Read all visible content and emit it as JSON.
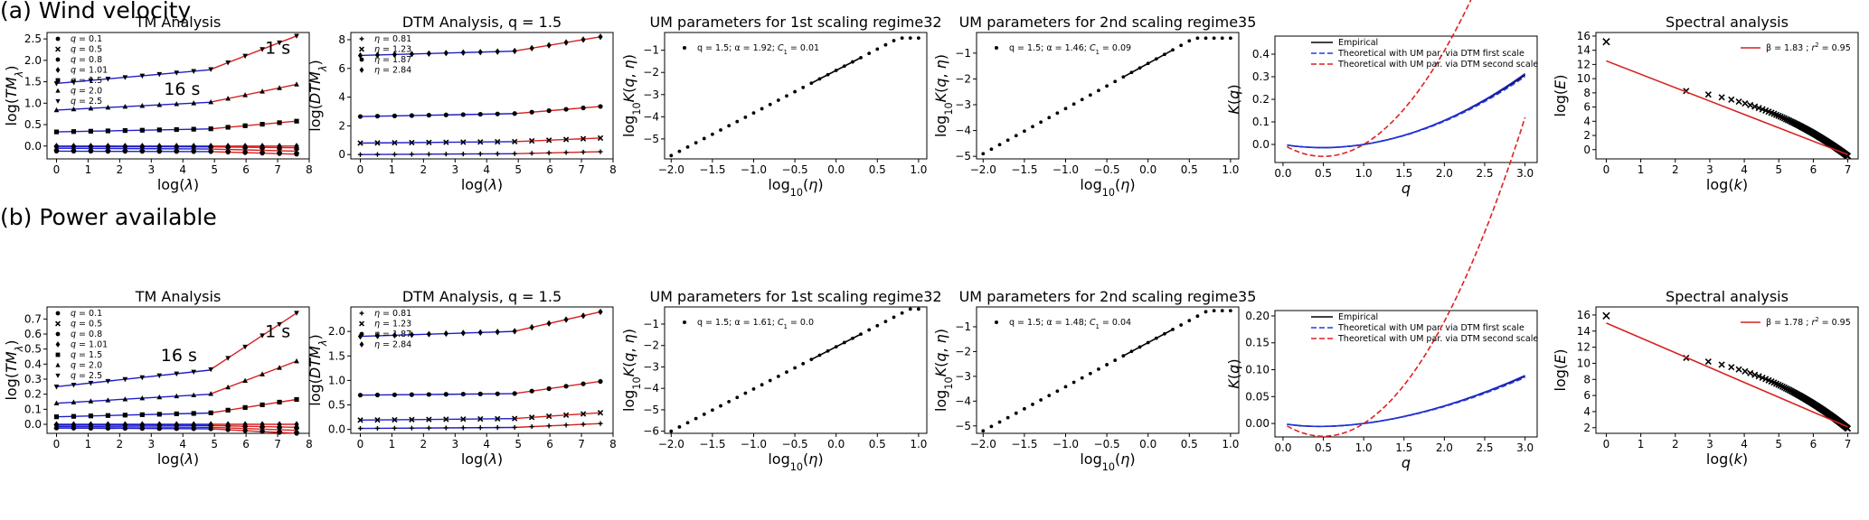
{
  "rows": [
    {
      "title": "(a) Wind velocity",
      "panels": {
        "tm": {
          "type": "line",
          "title": "TM Analysis",
          "xlabel": "log(λ)",
          "ylabel": "log(TMλ)",
          "xlim": [
            -0.3,
            8
          ],
          "ylim": [
            -0.3,
            2.65
          ],
          "xticks": [
            "0",
            "1",
            "2",
            "3",
            "4",
            "5",
            "6",
            "7",
            "8"
          ],
          "yticks": [
            "0.0",
            "0.5",
            "1.0",
            "1.5",
            "2.0",
            "2.5"
          ],
          "yticks_values": [
            0,
            0.5,
            1.0,
            1.5,
            2.0,
            2.5
          ],
          "legend": [
            "q = 0.1",
            "q = 0.5",
            "q = 0.8",
            "q = 1.01",
            "q = 1.5",
            "q = 2.0",
            "q = 2.5"
          ],
          "annotations": [
            {
              "text": "1 s",
              "x": 6.6,
              "y": 2.15
            },
            {
              "text": "16 s",
              "x": 3.4,
              "y": 1.2
            }
          ],
          "break_x": 4.85,
          "x_end": 7.6,
          "series": [
            {
              "name": "q = 0.1",
              "start": -0.01,
              "mid": -0.02,
              "end": -0.04
            },
            {
              "name": "q = 0.5",
              "start": -0.05,
              "mid": -0.07,
              "end": -0.12
            },
            {
              "name": "q = 0.8",
              "start": -0.12,
              "mid": -0.13,
              "end": -0.19
            },
            {
              "name": "q = 1.01",
              "start": 0.0,
              "mid": 0.0,
              "end": 0.0
            },
            {
              "name": "q = 1.5",
              "start": 0.33,
              "mid": 0.4,
              "end": 0.58
            },
            {
              "name": "q = 2.0",
              "start": 0.84,
              "mid": 1.02,
              "end": 1.44
            },
            {
              "name": "q = 2.5",
              "start": 1.46,
              "mid": 1.78,
              "end": 2.57
            }
          ]
        },
        "dtm": {
          "type": "line",
          "title": "DTM Analysis, q = 1.5",
          "xlabel": "log(λ)",
          "ylabel": "log(DTMλ)",
          "xlim": [
            -0.3,
            8
          ],
          "ylim": [
            -0.3,
            8.5
          ],
          "xticks": [
            "0",
            "1",
            "2",
            "3",
            "4",
            "5",
            "6",
            "7",
            "8"
          ],
          "yticks": [
            "0",
            "2",
            "4",
            "6",
            "8"
          ],
          "yticks_values": [
            0,
            2,
            4,
            6,
            8
          ],
          "legend": [
            "η = 0.81",
            "η = 1.23",
            "η = 1.87",
            "η = 2.84"
          ],
          "break_x": 4.85,
          "x_end": 7.6,
          "series": [
            {
              "name": "η = 0.81",
              "start": 0.0,
              "mid": 0.06,
              "end": 0.2
            },
            {
              "name": "η = 1.23",
              "start": 0.8,
              "mid": 0.9,
              "end": 1.15
            },
            {
              "name": "η = 1.87",
              "start": 2.65,
              "mid": 2.85,
              "end": 3.35
            },
            {
              "name": "η = 2.84",
              "start": 6.9,
              "mid": 7.2,
              "end": 8.2
            }
          ]
        },
        "um1": {
          "type": "scatter",
          "title": "UM parameters for 1st scaling regime32",
          "xlabel": "log10(η)",
          "ylabel": "log10K(q, η)",
          "xlim": [
            -2.08,
            1.1
          ],
          "ylim": [
            -5.9,
            -0.2
          ],
          "xticks": [
            "−2.0",
            "−1.5",
            "−1.0",
            "−0.5",
            "0.0",
            "0.5",
            "1.0"
          ],
          "xticks_values": [
            -2.0,
            -1.5,
            -1.0,
            -0.5,
            0.0,
            0.5,
            1.0
          ],
          "yticks": [
            "−5",
            "−4",
            "−3",
            "−2",
            "−1"
          ],
          "yticks_values": [
            -5,
            -4,
            -3,
            -2,
            -1
          ],
          "legend": [
            "q = 1.5; α = 1.92; C1 = 0.01"
          ],
          "x0": -2.0,
          "y0": -5.75,
          "slope": 1.92,
          "plateau": -0.45,
          "fit_range": [
            -0.3,
            0.3
          ]
        },
        "um2": {
          "type": "scatter",
          "title": "UM parameters for 2nd scaling regime35",
          "xlabel": "log10(η)",
          "ylabel": "log10K(q, η)",
          "xlim": [
            -2.08,
            1.1
          ],
          "ylim": [
            -5.1,
            -0.2
          ],
          "xticks": [
            "−2.0",
            "−1.5",
            "−1.0",
            "−0.5",
            "0.0",
            "0.5",
            "1.0"
          ],
          "xticks_values": [
            -2.0,
            -1.5,
            -1.0,
            -0.5,
            0.0,
            0.5,
            1.0
          ],
          "yticks": [
            "−5",
            "−4",
            "−3",
            "−2",
            "−1"
          ],
          "yticks_values": [
            -5,
            -4,
            -3,
            -2,
            -1
          ],
          "legend": [
            "q = 1.5; α = 1.46; C1 = 0.09"
          ],
          "x0": -2.0,
          "y0": -4.9,
          "slope": 1.75,
          "plateau": -0.42,
          "fit_range": [
            -0.3,
            0.3
          ]
        },
        "kq": {
          "type": "line",
          "xlabel": "q",
          "ylabel": "K(q)",
          "xlim": [
            -0.1,
            3.15
          ],
          "ylim": [
            -0.08,
            0.48
          ],
          "xticks": [
            "0.0",
            "0.5",
            "1.0",
            "1.5",
            "2.0",
            "2.5",
            "3.0"
          ],
          "xticks_values": [
            0,
            0.5,
            1.0,
            1.5,
            2.0,
            2.5,
            3.0
          ],
          "yticks": [
            "0.0",
            "0.1",
            "0.2",
            "0.3",
            "0.4"
          ],
          "yticks_values": [
            0,
            0.1,
            0.2,
            0.3,
            0.4
          ],
          "legend": [
            "Empirical",
            "Theoretical with UM par. via DTM first scale",
            "Theoretical with UM par. via DTM second scale"
          ],
          "c1_first": 0.055,
          "alpha_first": 1.92,
          "c1_second": 0.21,
          "alpha_second": 1.46,
          "c1_emp": 0.055
        },
        "spec": {
          "type": "scatter",
          "title": "Spectral analysis",
          "xlabel": "log(k)",
          "ylabel": "log(E)",
          "xlim": [
            -0.3,
            7.3
          ],
          "ylim": [
            -1.3,
            16.5
          ],
          "xticks": [
            "0",
            "1",
            "2",
            "3",
            "4",
            "5",
            "6",
            "7"
          ],
          "xticks_values": [
            0,
            1,
            2,
            3,
            4,
            5,
            6,
            7
          ],
          "yticks": [
            "0",
            "2",
            "4",
            "6",
            "8",
            "10",
            "12",
            "14",
            "16"
          ],
          "yticks_values": [
            0,
            2,
            4,
            6,
            8,
            10,
            12,
            14,
            16
          ],
          "legend": [
            "β = 1.83 ; r² = 0.95"
          ],
          "fit_start": 12.5,
          "fit_end": -0.7,
          "first_point": 15.2,
          "knee_y": 8.8
        }
      }
    },
    {
      "title": "(b) Power available",
      "panels": {
        "tm": {
          "type": "line",
          "title": "TM Analysis",
          "xlabel": "log(λ)",
          "ylabel": "log(TMλ)",
          "xlim": [
            -0.3,
            8
          ],
          "ylim": [
            -0.06,
            0.78
          ],
          "xticks": [
            "0",
            "1",
            "2",
            "3",
            "4",
            "5",
            "6",
            "7",
            "8"
          ],
          "yticks": [
            "0.0",
            "0.1",
            "0.2",
            "0.3",
            "0.4",
            "0.5",
            "0.6",
            "0.7"
          ],
          "yticks_values": [
            0,
            0.1,
            0.2,
            0.3,
            0.4,
            0.5,
            0.6,
            0.7
          ],
          "legend": [
            "q = 0.1",
            "q = 0.5",
            "q = 0.8",
            "q = 1.01",
            "q = 1.5",
            "q = 2.0",
            "q = 2.5"
          ],
          "annotations": [
            {
              "text": "1 s",
              "x": 6.6,
              "y": 0.58
            },
            {
              "text": "16 s",
              "x": 3.3,
              "y": 0.42
            }
          ],
          "break_x": 4.85,
          "x_end": 7.6,
          "series": [
            {
              "name": "q = 0.1",
              "start": -0.005,
              "mid": -0.008,
              "end": -0.02
            },
            {
              "name": "q = 0.5",
              "start": -0.015,
              "mid": -0.02,
              "end": -0.04
            },
            {
              "name": "q = 0.8",
              "start": -0.025,
              "mid": -0.03,
              "end": -0.06
            },
            {
              "name": "q = 1.01",
              "start": 0.0,
              "mid": 0.0,
              "end": 0.0
            },
            {
              "name": "q = 1.5",
              "start": 0.05,
              "mid": 0.075,
              "end": 0.165
            },
            {
              "name": "q = 2.0",
              "start": 0.14,
              "mid": 0.2,
              "end": 0.42
            },
            {
              "name": "q = 2.5",
              "start": 0.25,
              "mid": 0.36,
              "end": 0.74
            }
          ]
        },
        "dtm": {
          "type": "line",
          "title": "DTM Analysis, q = 1.5",
          "xlabel": "log(λ)",
          "ylabel": "log(DTMλ)",
          "xlim": [
            -0.3,
            8
          ],
          "ylim": [
            -0.08,
            2.5
          ],
          "xticks": [
            "0",
            "1",
            "2",
            "3",
            "4",
            "5",
            "6",
            "7",
            "8"
          ],
          "yticks": [
            "0.0",
            "0.5",
            "1.0",
            "1.5",
            "2.0"
          ],
          "yticks_values": [
            0,
            0.5,
            1.0,
            1.5,
            2.0
          ],
          "legend": [
            "η = 0.81",
            "η = 1.23",
            "η = 1.87",
            "η = 2.84"
          ],
          "break_x": 4.85,
          "x_end": 7.6,
          "series": [
            {
              "name": "η = 0.81",
              "start": 0.02,
              "mid": 0.04,
              "end": 0.12
            },
            {
              "name": "η = 1.23",
              "start": 0.19,
              "mid": 0.22,
              "end": 0.34
            },
            {
              "name": "η = 1.87",
              "start": 0.7,
              "mid": 0.73,
              "end": 0.98
            },
            {
              "name": "η = 2.84",
              "start": 1.9,
              "mid": 2.0,
              "end": 2.4
            }
          ]
        },
        "um1": {
          "type": "scatter",
          "title": "UM parameters for 1st scaling regime32",
          "xlabel": "log10(η)",
          "ylabel": "log10K(q, η)",
          "xlim": [
            -2.08,
            1.1
          ],
          "ylim": [
            -6.1,
            -0.2
          ],
          "xticks": [
            "−2.0",
            "−1.5",
            "−1.0",
            "−0.5",
            "0.0",
            "0.5",
            "1.0"
          ],
          "xticks_values": [
            -2.0,
            -1.5,
            -1.0,
            -0.5,
            0.0,
            0.5,
            1.0
          ],
          "yticks": [
            "−6",
            "−5",
            "−4",
            "−3",
            "−2",
            "−1"
          ],
          "yticks_values": [
            -6,
            -5,
            -4,
            -3,
            -2,
            -1
          ],
          "legend": [
            "q = 1.5; α = 1.61; C1 = 0.0"
          ],
          "x0": -2.0,
          "y0": -6.0,
          "slope": 1.97,
          "plateau": -0.3,
          "fit_range": [
            -0.3,
            0.3
          ]
        },
        "um2": {
          "type": "scatter",
          "title": "UM parameters for 2nd scaling regime35",
          "xlabel": "log10(η)",
          "ylabel": "log10K(q, η)",
          "xlim": [
            -2.08,
            1.1
          ],
          "ylim": [
            -5.3,
            -0.2
          ],
          "xticks": [
            "−2.0",
            "−1.5",
            "−1.0",
            "−0.5",
            "0.0",
            "0.5",
            "1.0"
          ],
          "xticks_values": [
            -2.0,
            -1.5,
            -1.0,
            -0.5,
            0.0,
            0.5,
            1.0
          ],
          "yticks": [
            "−5",
            "−4",
            "−3",
            "−2",
            "−1"
          ],
          "yticks_values": [
            -5,
            -4,
            -3,
            -2,
            -1
          ],
          "legend": [
            "q = 1.5; α = 1.48; C1 = 0.04"
          ],
          "x0": -2.0,
          "y0": -5.2,
          "slope": 1.78,
          "plateau": -0.35,
          "fit_range": [
            -0.3,
            0.3
          ]
        },
        "kq": {
          "type": "line",
          "xlabel": "q",
          "ylabel": "K(q)",
          "xlim": [
            -0.1,
            3.15
          ],
          "ylim": [
            -0.025,
            0.21
          ],
          "xticks": [
            "0.0",
            "0.5",
            "1.0",
            "1.5",
            "2.0",
            "2.5",
            "3.0"
          ],
          "xticks_values": [
            0,
            0.5,
            1.0,
            1.5,
            2.0,
            2.5,
            3.0
          ],
          "yticks": [
            "0.00",
            "0.05",
            "0.10",
            "0.15",
            "0.20"
          ],
          "yticks_values": [
            0,
            0.05,
            0.1,
            0.15,
            0.2
          ],
          "legend": [
            "Empirical",
            "Theoretical with UM par. via DTM first scale",
            "Theoretical with UM par. via DTM second scale"
          ],
          "c1_first": 0.019,
          "alpha_first": 1.61,
          "c1_second": 0.095,
          "alpha_second": 1.48,
          "c1_emp": 0.019
        },
        "spec": {
          "type": "scatter",
          "title": "Spectral analysis",
          "xlabel": "log(k)",
          "ylabel": "log(E)",
          "xlim": [
            -0.3,
            7.3
          ],
          "ylim": [
            1.3,
            17
          ],
          "xticks": [
            "0",
            "1",
            "2",
            "3",
            "4",
            "5",
            "6",
            "7"
          ],
          "xticks_values": [
            0,
            1,
            2,
            3,
            4,
            5,
            6,
            7
          ],
          "yticks": [
            "2",
            "4",
            "6",
            "8",
            "10",
            "12",
            "14",
            "16"
          ],
          "yticks_values": [
            2,
            4,
            6,
            8,
            10,
            12,
            14,
            16
          ],
          "legend": [
            "β = 1.78 ; r² = 0.95"
          ],
          "fit_start": 15.0,
          "fit_end": 2.1,
          "first_point": 15.9,
          "knee_y": 11.2
        }
      }
    }
  ],
  "colors": {
    "blue": "#1f1fc8",
    "red": "#d62020",
    "black": "#000000",
    "dashed_blue": "#1f3fe0",
    "dashed_red": "#e02020"
  }
}
